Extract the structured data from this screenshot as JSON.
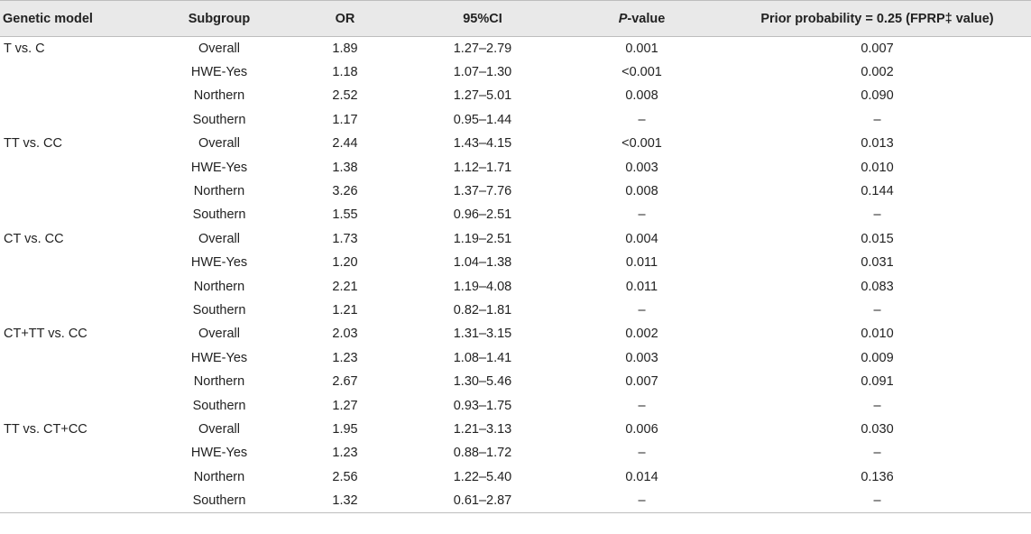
{
  "headers": {
    "model": "Genetic model",
    "subgroup": "Subgroup",
    "or": "OR",
    "ci": "95%CI",
    "p_italic": "P",
    "p_rest": "-value",
    "fprp": "Prior probability = 0.25 (FPRP‡ value)"
  },
  "rows": [
    {
      "model": "T vs. C",
      "subgroup": "Overall",
      "or": "1.89",
      "ci": "1.27–2.79",
      "p": "0.001",
      "fprp": "0.007"
    },
    {
      "model": "",
      "subgroup": "HWE-Yes",
      "or": "1.18",
      "ci": "1.07–1.30",
      "p": "<0.001",
      "fprp": "0.002"
    },
    {
      "model": "",
      "subgroup": "Northern",
      "or": "2.52",
      "ci": "1.27–5.01",
      "p": "0.008",
      "fprp": "0.090"
    },
    {
      "model": "",
      "subgroup": "Southern",
      "or": "1.17",
      "ci": "0.95–1.44",
      "p": "–",
      "fprp": "–"
    },
    {
      "model": "TT vs. CC",
      "subgroup": "Overall",
      "or": "2.44",
      "ci": "1.43–4.15",
      "p": "<0.001",
      "fprp": "0.013"
    },
    {
      "model": "",
      "subgroup": "HWE-Yes",
      "or": "1.38",
      "ci": "1.12–1.71",
      "p": "0.003",
      "fprp": "0.010"
    },
    {
      "model": "",
      "subgroup": "Northern",
      "or": "3.26",
      "ci": "1.37–7.76",
      "p": "0.008",
      "fprp": "0.144"
    },
    {
      "model": "",
      "subgroup": "Southern",
      "or": "1.55",
      "ci": "0.96–2.51",
      "p": "–",
      "fprp": "–"
    },
    {
      "model": "CT vs. CC",
      "subgroup": "Overall",
      "or": "1.73",
      "ci": "1.19–2.51",
      "p": "0.004",
      "fprp": "0.015"
    },
    {
      "model": "",
      "subgroup": "HWE-Yes",
      "or": "1.20",
      "ci": "1.04–1.38",
      "p": "0.011",
      "fprp": "0.031"
    },
    {
      "model": "",
      "subgroup": "Northern",
      "or": "2.21",
      "ci": "1.19–4.08",
      "p": "0.011",
      "fprp": "0.083"
    },
    {
      "model": "",
      "subgroup": "Southern",
      "or": "1.21",
      "ci": "0.82–1.81",
      "p": "–",
      "fprp": "–"
    },
    {
      "model": "CT+TT vs. CC",
      "subgroup": "Overall",
      "or": "2.03",
      "ci": "1.31–3.15",
      "p": "0.002",
      "fprp": "0.010"
    },
    {
      "model": "",
      "subgroup": "HWE-Yes",
      "or": "1.23",
      "ci": "1.08–1.41",
      "p": "0.003",
      "fprp": "0.009"
    },
    {
      "model": "",
      "subgroup": "Northern",
      "or": "2.67",
      "ci": "1.30–5.46",
      "p": "0.007",
      "fprp": "0.091"
    },
    {
      "model": "",
      "subgroup": "Southern",
      "or": "1.27",
      "ci": "0.93–1.75",
      "p": "–",
      "fprp": "–"
    },
    {
      "model": "TT vs. CT+CC",
      "subgroup": "Overall",
      "or": "1.95",
      "ci": "1.21–3.13",
      "p": "0.006",
      "fprp": "0.030"
    },
    {
      "model": "",
      "subgroup": "HWE-Yes",
      "or": "1.23",
      "ci": "0.88–1.72",
      "p": "–",
      "fprp": "–"
    },
    {
      "model": "",
      "subgroup": "Northern",
      "or": "2.56",
      "ci": "1.22–5.40",
      "p": "0.014",
      "fprp": "0.136"
    },
    {
      "model": "",
      "subgroup": "Southern",
      "or": "1.32",
      "ci": "0.61–2.87",
      "p": "–",
      "fprp": "–"
    }
  ]
}
